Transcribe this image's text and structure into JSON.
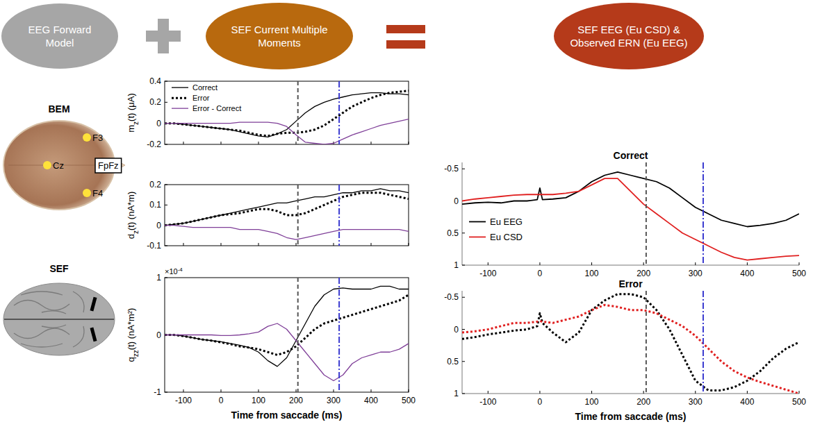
{
  "header": {
    "items": [
      {
        "lines": [
          "EEG Forward",
          "Model"
        ],
        "color": "#a6a6a6"
      },
      {
        "lines": [
          "SEF Current Multiple",
          "Moments"
        ],
        "color": "#b8690e"
      },
      {
        "lines": [
          "SEF EEG (Eu CSD) &",
          "Observed ERN (Eu EEG)"
        ],
        "color": "#b53a1a"
      }
    ]
  },
  "diagram": {
    "head_title": "BEM",
    "brain_title": "SEF",
    "electrodes": [
      "F3",
      "Cz",
      "FpFz",
      "F4"
    ]
  },
  "chart_data": [
    {
      "type": "line",
      "x": [
        -150,
        -125,
        -100,
        -75,
        -50,
        -25,
        0,
        25,
        50,
        75,
        100,
        125,
        150,
        175,
        200,
        225,
        250,
        275,
        300,
        325,
        350,
        375,
        400,
        425,
        450,
        475,
        500
      ],
      "xlim": [
        -150,
        500
      ],
      "xticks": [
        -100,
        0,
        100,
        200,
        300,
        400,
        500
      ],
      "ylim": [
        -0.2,
        0.4
      ],
      "yticks": [
        -0.2,
        0,
        0.2,
        0.4
      ],
      "tick_labels": "y",
      "ylabel": {
        "symbol": "m",
        "sub": "z",
        "rest": "(t) (μA)"
      },
      "legend": "upper left",
      "series": [
        {
          "name": "Correct",
          "color": "#000000",
          "line_style": "solid",
          "values": [
            0,
            0,
            -0.01,
            -0.02,
            -0.03,
            -0.04,
            -0.05,
            -0.06,
            -0.08,
            -0.1,
            -0.12,
            -0.13,
            -0.1,
            -0.06,
            0.02,
            0.1,
            0.16,
            0.2,
            0.23,
            0.25,
            0.27,
            0.28,
            0.29,
            0.29,
            0.28,
            0.28,
            0.27
          ]
        },
        {
          "name": "Error",
          "color": "#000000",
          "line_style": "dotted",
          "values": [
            0,
            0,
            -0.01,
            -0.02,
            -0.03,
            -0.04,
            -0.05,
            -0.06,
            -0.07,
            -0.09,
            -0.11,
            -0.12,
            -0.1,
            -0.09,
            -0.09,
            -0.08,
            -0.06,
            -0.02,
            0.04,
            0.1,
            0.16,
            0.2,
            0.24,
            0.27,
            0.29,
            0.3,
            0.31
          ]
        },
        {
          "name": "Error - Correct",
          "color": "#7f3f98",
          "line_style": "solid",
          "values": [
            0,
            0,
            0,
            0,
            0,
            0,
            0,
            0,
            0.01,
            0.01,
            0.01,
            0.01,
            0,
            -0.03,
            -0.11,
            -0.18,
            -0.19,
            -0.2,
            -0.19,
            -0.15,
            -0.11,
            -0.08,
            -0.05,
            -0.02,
            0,
            0.02,
            0.04
          ]
        }
      ],
      "reference_lines": [
        {
          "x": 205,
          "color": "#555555",
          "line_style": "dashed"
        },
        {
          "x": 315,
          "color": "#3a3ad0",
          "line_style": "dashdot"
        }
      ]
    },
    {
      "type": "line",
      "x": [
        -150,
        -125,
        -100,
        -75,
        -50,
        -25,
        0,
        25,
        50,
        75,
        100,
        125,
        150,
        175,
        200,
        225,
        250,
        275,
        300,
        325,
        350,
        375,
        400,
        425,
        450,
        475,
        500
      ],
      "xlim": [
        -150,
        500
      ],
      "xticks": [
        -100,
        0,
        100,
        200,
        300,
        400,
        500
      ],
      "ylim": [
        -0.1,
        0.2
      ],
      "yticks": [
        -0.1,
        0,
        0.1,
        0.2
      ],
      "tick_labels": "y",
      "ylabel": {
        "symbol": "d",
        "sub": "z",
        "rest": "(t) (nA*m)"
      },
      "series": [
        {
          "name": "Correct",
          "color": "#000000",
          "line_style": "solid",
          "values": [
            0,
            0.005,
            0.01,
            0.02,
            0.03,
            0.04,
            0.05,
            0.06,
            0.07,
            0.08,
            0.09,
            0.1,
            0.11,
            0.11,
            0.12,
            0.13,
            0.14,
            0.14,
            0.15,
            0.16,
            0.16,
            0.17,
            0.17,
            0.18,
            0.17,
            0.17,
            0.16
          ]
        },
        {
          "name": "Error",
          "color": "#000000",
          "line_style": "dotted",
          "values": [
            0,
            0.005,
            0.01,
            0.02,
            0.03,
            0.04,
            0.05,
            0.055,
            0.06,
            0.07,
            0.08,
            0.08,
            0.07,
            0.05,
            0.05,
            0.06,
            0.08,
            0.1,
            0.12,
            0.14,
            0.15,
            0.16,
            0.16,
            0.16,
            0.15,
            0.14,
            0.13
          ]
        },
        {
          "name": "Error - Correct",
          "color": "#7f3f98",
          "line_style": "solid",
          "values": [
            0,
            0,
            -0.005,
            -0.01,
            -0.01,
            -0.01,
            -0.01,
            -0.01,
            -0.02,
            -0.02,
            -0.02,
            -0.03,
            -0.04,
            -0.06,
            -0.07,
            -0.06,
            -0.05,
            -0.04,
            -0.03,
            -0.02,
            -0.02,
            -0.02,
            -0.02,
            -0.02,
            -0.02,
            -0.02,
            -0.03
          ]
        }
      ],
      "reference_lines": [
        {
          "x": 205,
          "color": "#555555",
          "line_style": "dashed"
        },
        {
          "x": 315,
          "color": "#3a3ad0",
          "line_style": "dashdot"
        }
      ]
    },
    {
      "type": "line",
      "x": [
        -150,
        -125,
        -100,
        -75,
        -50,
        -25,
        0,
        25,
        50,
        75,
        100,
        125,
        150,
        175,
        200,
        225,
        250,
        275,
        300,
        325,
        350,
        375,
        400,
        425,
        450,
        475,
        500
      ],
      "xlim": [
        -150,
        500
      ],
      "xticks": [
        -100,
        0,
        100,
        200,
        300,
        400,
        500
      ],
      "ylim": [
        -1,
        1
      ],
      "yticks": [
        -1,
        0,
        1
      ],
      "xlabel": "Time from saccade (ms)",
      "ylabel": {
        "symbol": "q",
        "sub": "zz",
        "rest": "(t) (nA*m²)"
      },
      "multiplier": {
        "base": "×10",
        "exponent": "-4"
      },
      "series": [
        {
          "name": "Correct",
          "color": "#000000",
          "line_style": "solid",
          "values": [
            0,
            0,
            -0.02,
            -0.05,
            -0.08,
            -0.1,
            -0.12,
            -0.15,
            -0.18,
            -0.22,
            -0.3,
            -0.45,
            -0.55,
            -0.4,
            -0.1,
            0.2,
            0.5,
            0.7,
            0.8,
            0.82,
            0.8,
            0.8,
            0.8,
            0.85,
            0.85,
            0.8,
            0.8
          ]
        },
        {
          "name": "Error",
          "color": "#000000",
          "line_style": "dotted",
          "values": [
            0,
            0,
            -0.02,
            -0.05,
            -0.08,
            -0.1,
            -0.13,
            -0.16,
            -0.2,
            -0.22,
            -0.25,
            -0.3,
            -0.35,
            -0.3,
            -0.2,
            -0.05,
            0.1,
            0.2,
            0.25,
            0.3,
            0.35,
            0.4,
            0.45,
            0.5,
            0.55,
            0.6,
            0.7
          ]
        },
        {
          "name": "Error - Correct",
          "color": "#7f3f98",
          "line_style": "solid",
          "values": [
            0,
            0,
            0,
            0,
            0,
            0,
            -0.01,
            -0.01,
            0,
            0.02,
            0.05,
            0.15,
            0.2,
            0.1,
            -0.1,
            -0.3,
            -0.5,
            -0.7,
            -0.8,
            -0.7,
            -0.5,
            -0.4,
            -0.35,
            -0.3,
            -0.3,
            -0.25,
            -0.15
          ]
        }
      ],
      "reference_lines": [
        {
          "x": 205,
          "color": "#555555",
          "line_style": "dashed"
        },
        {
          "x": 315,
          "color": "#3a3ad0",
          "line_style": "dashdot"
        }
      ]
    },
    {
      "type": "line",
      "title": "Correct",
      "x": [
        -150,
        -125,
        -100,
        -75,
        -50,
        -25,
        -5,
        0,
        5,
        25,
        50,
        75,
        100,
        125,
        150,
        175,
        200,
        225,
        250,
        275,
        300,
        325,
        350,
        375,
        400,
        425,
        450,
        475,
        500
      ],
      "xlim": [
        -150,
        500
      ],
      "xticks": [
        -100,
        0,
        100,
        200,
        300,
        400,
        500
      ],
      "ylim": [
        1,
        -0.6
      ],
      "yticks": [
        -0.5,
        0,
        0.5,
        1
      ],
      "legend": "lower left",
      "series": [
        {
          "name": "Eu EEG",
          "color": "#000000",
          "line_style": "solid",
          "values": [
            0.05,
            0.03,
            0.02,
            0.03,
            0,
            0,
            -0.02,
            -0.2,
            -0.02,
            -0.03,
            -0.05,
            -0.15,
            -0.3,
            -0.4,
            -0.45,
            -0.4,
            -0.35,
            -0.3,
            -0.2,
            -0.05,
            0.1,
            0.2,
            0.3,
            0.35,
            0.4,
            0.38,
            0.35,
            0.3,
            0.2
          ]
        },
        {
          "name": "Eu CSD",
          "color": "#e02020",
          "line_style": "solid",
          "values": [
            0,
            -0.03,
            -0.05,
            -0.07,
            -0.09,
            -0.1,
            -0.1,
            -0.1,
            -0.1,
            -0.1,
            -0.12,
            -0.15,
            -0.25,
            -0.35,
            -0.35,
            -0.15,
            0.05,
            0.2,
            0.35,
            0.5,
            0.6,
            0.7,
            0.8,
            0.88,
            0.92,
            0.9,
            0.88,
            0.86,
            0.85
          ]
        }
      ],
      "reference_lines": [
        {
          "x": 205,
          "color": "#555555",
          "line_style": "dashed"
        },
        {
          "x": 315,
          "color": "#3a3ad0",
          "line_style": "dashdot"
        }
      ]
    },
    {
      "type": "line",
      "title": "Error",
      "x": [
        -150,
        -125,
        -100,
        -75,
        -50,
        -25,
        -5,
        0,
        5,
        25,
        50,
        75,
        100,
        125,
        150,
        175,
        200,
        225,
        250,
        275,
        300,
        325,
        350,
        375,
        400,
        425,
        450,
        475,
        500
      ],
      "xlim": [
        -150,
        500
      ],
      "xticks": [
        -100,
        0,
        100,
        200,
        300,
        400,
        500
      ],
      "ylim": [
        1,
        -0.6
      ],
      "yticks": [
        -0.5,
        0,
        0.5,
        1
      ],
      "xlabel": "Time from saccade (ms)",
      "series": [
        {
          "name": "Eu EEG",
          "color": "#000000",
          "line_style": "dotted",
          "values": [
            0.15,
            0.12,
            0.08,
            0.05,
            0.02,
            0,
            -0.05,
            -0.25,
            -0.1,
            0.05,
            0.2,
            0.05,
            -0.3,
            -0.45,
            -0.55,
            -0.55,
            -0.5,
            -0.3,
            0,
            0.4,
            0.8,
            0.95,
            0.95,
            0.9,
            0.8,
            0.65,
            0.45,
            0.3,
            0.2
          ]
        },
        {
          "name": "Eu CSD",
          "color": "#e02020",
          "line_style": "dotted",
          "values": [
            0.05,
            0.03,
            0,
            -0.05,
            -0.1,
            -0.1,
            -0.12,
            -0.13,
            -0.12,
            -0.1,
            -0.15,
            -0.2,
            -0.3,
            -0.38,
            -0.35,
            -0.3,
            -0.3,
            -0.25,
            -0.15,
            -0.05,
            0.1,
            0.3,
            0.5,
            0.65,
            0.75,
            0.82,
            0.88,
            0.94,
            1
          ]
        }
      ],
      "reference_lines": [
        {
          "x": 205,
          "color": "#555555",
          "line_style": "dashed"
        },
        {
          "x": 315,
          "color": "#3a3ad0",
          "line_style": "dashdot"
        }
      ]
    }
  ]
}
